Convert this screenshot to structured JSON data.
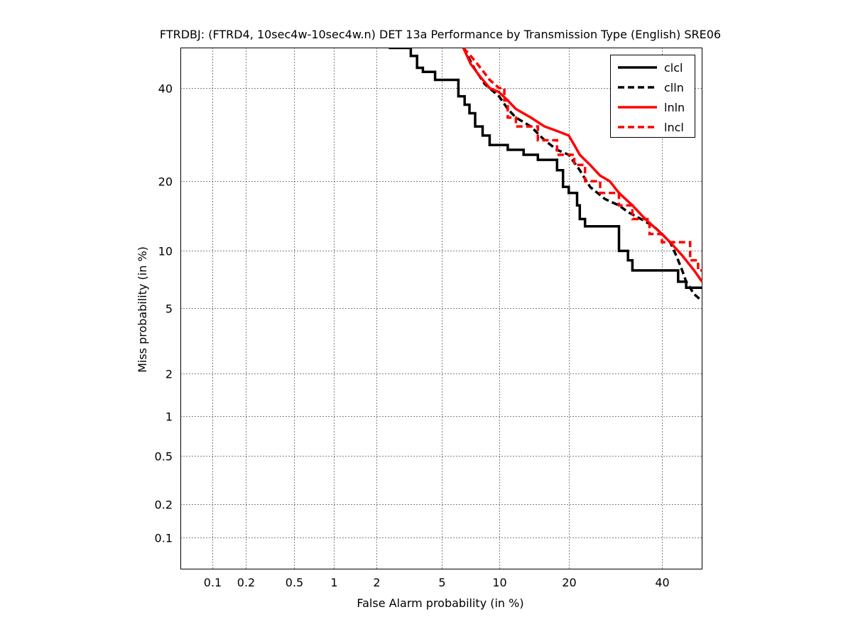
{
  "chart_data": {
    "type": "line",
    "title": "FTRDBJ: (FTRD4, 10sec4w-10sec4w.n) DET 13a Performance by Transmission Type (English) SRE06",
    "xlabel": "False Alarm probability (in %)",
    "ylabel": "Miss probability (in %)",
    "x_scale": "normal-deviate",
    "y_scale": "normal-deviate",
    "xlim": [
      0.05,
      50
    ],
    "ylim": [
      0.05,
      50
    ],
    "x_ticks": [
      {
        "value": 0.1,
        "label": "0.1"
      },
      {
        "value": 0.2,
        "label": "0.2"
      },
      {
        "value": 0.5,
        "label": "0.5"
      },
      {
        "value": 1,
        "label": "1"
      },
      {
        "value": 2,
        "label": "2"
      },
      {
        "value": 5,
        "label": "5"
      },
      {
        "value": 10,
        "label": "10"
      },
      {
        "value": 20,
        "label": "20"
      },
      {
        "value": 40,
        "label": "40"
      }
    ],
    "y_ticks": [
      {
        "value": 0.1,
        "label": "0.1"
      },
      {
        "value": 0.2,
        "label": "0.2"
      },
      {
        "value": 0.5,
        "label": "0.5"
      },
      {
        "value": 1,
        "label": "1"
      },
      {
        "value": 2,
        "label": "2"
      },
      {
        "value": 5,
        "label": "5"
      },
      {
        "value": 10,
        "label": "10"
      },
      {
        "value": 20,
        "label": "20"
      },
      {
        "value": 40,
        "label": "40"
      }
    ],
    "grid": true,
    "legend_position": "top-right",
    "series": [
      {
        "name": "clcl",
        "color": "#000000",
        "dash": false,
        "points": [
          [
            2.4,
            50
          ],
          [
            3.3,
            50
          ],
          [
            3.3,
            48
          ],
          [
            3.6,
            48
          ],
          [
            3.6,
            45
          ],
          [
            3.9,
            45
          ],
          [
            3.9,
            44
          ],
          [
            4.6,
            44
          ],
          [
            4.6,
            42
          ],
          [
            6.2,
            42
          ],
          [
            6.2,
            38
          ],
          [
            6.7,
            38
          ],
          [
            6.7,
            36
          ],
          [
            7.1,
            36
          ],
          [
            7.1,
            34
          ],
          [
            7.6,
            34
          ],
          [
            7.6,
            31
          ],
          [
            8.3,
            31
          ],
          [
            8.3,
            29
          ],
          [
            9.0,
            29
          ],
          [
            9.0,
            27
          ],
          [
            11,
            27
          ],
          [
            11,
            26
          ],
          [
            13,
            26
          ],
          [
            13,
            25
          ],
          [
            15,
            25
          ],
          [
            15,
            24
          ],
          [
            18,
            24
          ],
          [
            18,
            22
          ],
          [
            19,
            22
          ],
          [
            19,
            19
          ],
          [
            20,
            19
          ],
          [
            20,
            18
          ],
          [
            21.5,
            18
          ],
          [
            21.5,
            16
          ],
          [
            22,
            16
          ],
          [
            22,
            14
          ],
          [
            23,
            14
          ],
          [
            23,
            13
          ],
          [
            30,
            13
          ],
          [
            30,
            10
          ],
          [
            32,
            10
          ],
          [
            32,
            9
          ],
          [
            33,
            9
          ],
          [
            33,
            8
          ],
          [
            44,
            8
          ],
          [
            44,
            7
          ],
          [
            46,
            7
          ],
          [
            46,
            6.5
          ],
          [
            50,
            6.5
          ]
        ]
      },
      {
        "name": "clln",
        "color": "#000000",
        "dash": true,
        "points": [
          [
            6.6,
            50
          ],
          [
            7.5,
            45
          ],
          [
            8.5,
            41
          ],
          [
            10,
            38
          ],
          [
            11,
            35
          ],
          [
            12,
            33
          ],
          [
            14,
            31
          ],
          [
            16,
            28
          ],
          [
            18,
            26
          ],
          [
            20,
            25
          ],
          [
            22,
            22
          ],
          [
            24,
            19
          ],
          [
            27,
            17
          ],
          [
            30,
            16
          ],
          [
            32,
            15
          ],
          [
            35,
            14
          ],
          [
            38,
            13
          ],
          [
            40,
            12
          ],
          [
            42,
            11
          ],
          [
            43,
            10
          ],
          [
            44,
            9
          ],
          [
            45,
            8
          ],
          [
            46,
            7
          ],
          [
            48,
            6
          ],
          [
            50,
            5.5
          ]
        ]
      },
      {
        "name": "lnln",
        "color": "#ff0000",
        "dash": false,
        "points": [
          [
            6.6,
            50
          ],
          [
            7.2,
            46
          ],
          [
            8,
            43
          ],
          [
            9,
            40
          ],
          [
            10,
            39
          ],
          [
            11,
            37
          ],
          [
            12,
            35
          ],
          [
            14,
            33
          ],
          [
            16,
            31
          ],
          [
            18,
            30
          ],
          [
            20,
            29
          ],
          [
            21,
            27
          ],
          [
            22,
            25
          ],
          [
            24,
            23
          ],
          [
            26,
            21
          ],
          [
            28,
            20
          ],
          [
            30,
            18
          ],
          [
            33,
            16
          ],
          [
            36,
            14
          ],
          [
            40,
            12
          ],
          [
            42,
            11
          ],
          [
            45,
            9.5
          ],
          [
            48,
            8
          ],
          [
            50,
            7
          ]
        ]
      },
      {
        "name": "lncl",
        "color": "#ff0000",
        "dash": true,
        "points": [
          [
            6.6,
            50
          ],
          [
            7.2,
            48
          ],
          [
            7.8,
            46
          ],
          [
            8.4,
            44
          ],
          [
            9,
            42
          ],
          [
            10,
            40
          ],
          [
            10.6,
            40
          ],
          [
            10.6,
            37
          ],
          [
            11,
            37
          ],
          [
            11,
            33
          ],
          [
            12,
            33
          ],
          [
            12,
            31
          ],
          [
            15,
            31
          ],
          [
            15,
            28
          ],
          [
            18,
            28
          ],
          [
            18,
            25
          ],
          [
            21,
            25
          ],
          [
            21,
            23
          ],
          [
            23,
            23
          ],
          [
            23,
            20
          ],
          [
            26,
            20
          ],
          [
            26,
            18
          ],
          [
            30,
            18
          ],
          [
            30,
            16
          ],
          [
            33,
            16
          ],
          [
            33,
            14
          ],
          [
            37,
            14
          ],
          [
            37,
            12
          ],
          [
            40,
            12
          ],
          [
            40,
            11
          ],
          [
            47,
            11
          ],
          [
            47,
            9
          ],
          [
            49,
            9
          ],
          [
            49,
            8
          ],
          [
            50,
            8
          ]
        ]
      }
    ]
  }
}
